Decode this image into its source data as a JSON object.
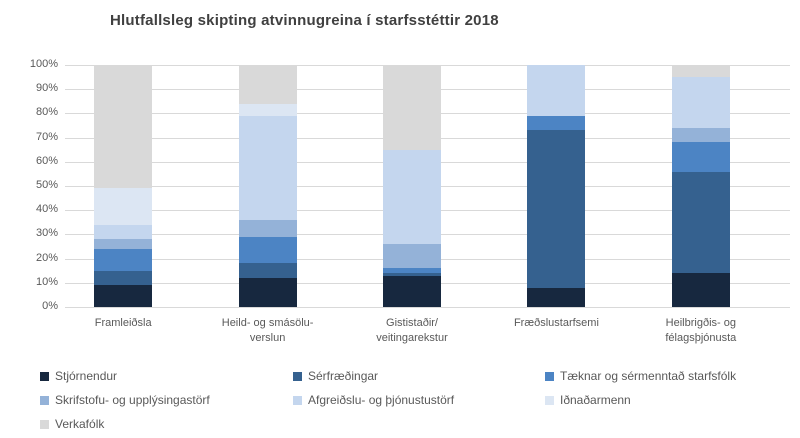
{
  "title": "Hlutfallsleg skipting atvinnugreina í starfsstéttir 2018",
  "colors": {
    "title_text": "#404040",
    "axis_text": "#595959",
    "gridline": "#d9d9d9",
    "background": "#ffffff"
  },
  "chart_data": {
    "type": "bar",
    "stacked": true,
    "percent": true,
    "title": "Hlutfallsleg skipting atvinnugreina í starfsstéttir 2018",
    "categories": [
      "Framleiðsla",
      "Heild- og smásöluverslun",
      "Gististaðir/veitingarekstur",
      "Fræðslustarfsemi",
      "Heilbrigðis- og félagsþjónusta"
    ],
    "category_label_lines": [
      [
        "Framleiðsla"
      ],
      [
        "Heild- og smásölu-",
        "verslun"
      ],
      [
        "Gististaðir/",
        "veitingarekstur"
      ],
      [
        "Fræðslustarfsemi"
      ],
      [
        "Heilbrigðis- og",
        "félagsþjónusta"
      ]
    ],
    "series": [
      {
        "name": "Stjórnendur",
        "color": "#17283F",
        "values": [
          9,
          12,
          13,
          8,
          14
        ]
      },
      {
        "name": "Sérfræðingar",
        "color": "#35618F",
        "values": [
          6,
          6,
          1,
          65,
          42
        ]
      },
      {
        "name": "Tæknar og sérmenntað starfsfólk",
        "color": "#4C84C4",
        "values": [
          9,
          11,
          2,
          6,
          12
        ]
      },
      {
        "name": "Skrifstofu- og upplýsingastörf",
        "color": "#94B2D8",
        "values": [
          4,
          7,
          10,
          0,
          6
        ]
      },
      {
        "name": "Afgreiðslu- og þjónustustörf",
        "color": "#C4D6EE",
        "values": [
          6,
          43,
          39,
          21,
          21
        ]
      },
      {
        "name": "Iðnaðarmenn",
        "color": "#DCE6F3",
        "values": [
          15,
          5,
          0,
          0,
          0
        ]
      },
      {
        "name": "Verkafólk",
        "color": "#D9D9D9",
        "values": [
          51,
          16,
          35,
          0,
          5
        ],
        "texture": "vertical-stripes"
      }
    ],
    "y_ticks": [
      "100%",
      "90%",
      "80%",
      "70%",
      "60%",
      "50%",
      "40%",
      "30%",
      "20%",
      "10%",
      "0%"
    ],
    "ylim": [
      0,
      100
    ],
    "grid": true,
    "legend_position": "bottom"
  }
}
